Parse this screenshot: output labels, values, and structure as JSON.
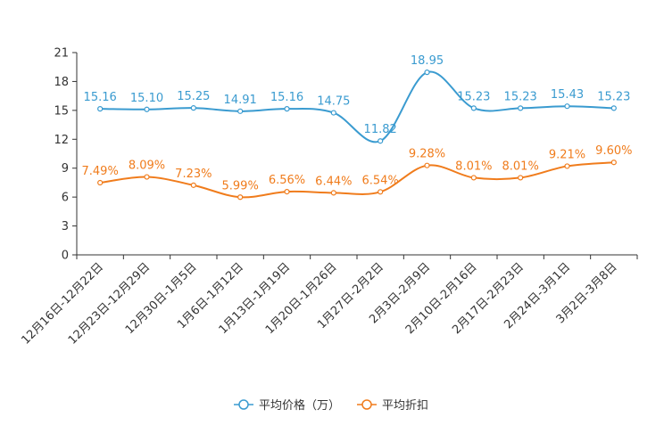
{
  "chart_data": {
    "type": "line",
    "title": "",
    "xlabel": "",
    "ylabel": "",
    "ylim": [
      0,
      21
    ],
    "yticks": [
      0,
      3,
      6,
      9,
      12,
      15,
      18,
      21
    ],
    "categories": [
      "12月16日-12月22日",
      "12月23日-12月29日",
      "12月30日-1月5日",
      "1月6日-1月12日",
      "1月13日-1月19日",
      "1月20日-1月26日",
      "1月27日-2月2日",
      "2月3日-2月9日",
      "2月10日-2月16日",
      "2月17日-2月23日",
      "2月24日-3月1日",
      "3月2日-3月8日"
    ],
    "series": [
      {
        "name": "平均价格（万）",
        "color": "#3a9bd0",
        "values": [
          15.16,
          15.1,
          15.25,
          14.91,
          15.16,
          14.75,
          11.82,
          18.95,
          15.23,
          15.23,
          15.43,
          15.23
        ],
        "labels": [
          "15.16",
          "15.10",
          "15.25",
          "14.91",
          "15.16",
          "14.75",
          "11.82",
          "18.95",
          "15.23",
          "15.23",
          "15.43",
          "15.23"
        ]
      },
      {
        "name": "平均折扣",
        "color": "#f07c1c",
        "values": [
          7.49,
          8.09,
          7.23,
          5.99,
          6.56,
          6.44,
          6.54,
          9.28,
          8.01,
          8.01,
          9.21,
          9.6
        ],
        "labels": [
          "7.49%",
          "8.09%",
          "7.23%",
          "5.99%",
          "6.56%",
          "6.44%",
          "6.54%",
          "9.28%",
          "8.01%",
          "8.01%",
          "9.21%",
          "9.60%"
        ]
      }
    ],
    "legend_position": "bottom-center",
    "grid": false
  }
}
